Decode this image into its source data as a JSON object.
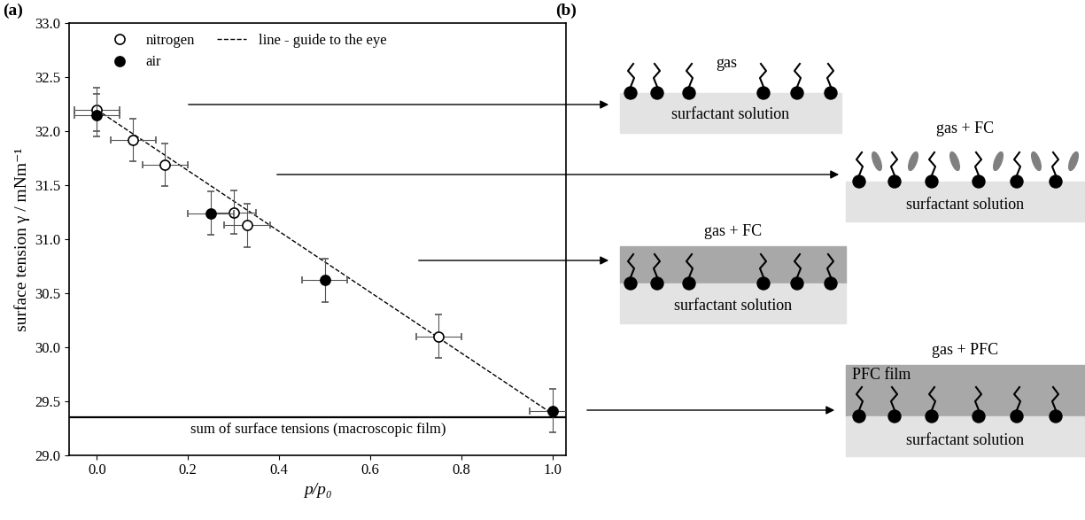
{
  "chart_data": {
    "type": "scatter",
    "panel_label": "(a)",
    "x_label": "p/p₀",
    "y_label": "surface tension γ / mNm⁻¹",
    "xlim": [
      -0.06,
      1.03
    ],
    "ylim": [
      29.0,
      33.0
    ],
    "xticks": [
      {
        "value": 0.0,
        "label": "0.0"
      },
      {
        "value": 0.2,
        "label": "0.2"
      },
      {
        "value": 0.4,
        "label": "0.4"
      },
      {
        "value": 0.6,
        "label": "0.6"
      },
      {
        "value": 0.8,
        "label": "0.8"
      },
      {
        "value": 1.0,
        "label": "1.0"
      }
    ],
    "yticks": [
      {
        "value": 29.0,
        "label": "29.0"
      },
      {
        "value": 29.5,
        "label": "29.5"
      },
      {
        "value": 30.0,
        "label": "30.0"
      },
      {
        "value": 30.5,
        "label": "30.5"
      },
      {
        "value": 31.0,
        "label": "31.0"
      },
      {
        "value": 31.5,
        "label": "31.5"
      },
      {
        "value": 32.0,
        "label": "32.0"
      },
      {
        "value": 32.5,
        "label": "32.5"
      },
      {
        "value": 33.0,
        "label": "33.0"
      }
    ],
    "legend": "upper left",
    "series": [
      {
        "name": "nitrogen",
        "type": "scatter",
        "color": "#000000",
        "marker": "open_circle",
        "x": [
          0.0,
          0.08,
          0.15,
          0.3,
          0.33,
          0.75
        ],
        "values": [
          32.2,
          31.92,
          31.69,
          31.25,
          31.13,
          30.1
        ],
        "x_errors": [
          0.05,
          0.05,
          0.05,
          0.05,
          0.05,
          0.05
        ],
        "y_errors": [
          0.2,
          0.2,
          0.2,
          0.2,
          0.2,
          0.2
        ]
      },
      {
        "name": "air",
        "type": "scatter",
        "color": "#000000",
        "marker": "filled_circle",
        "x": [
          0.0,
          0.25,
          0.5,
          1.0
        ],
        "values": [
          32.15,
          31.24,
          30.62,
          29.41
        ],
        "x_errors": [
          0.05,
          0.05,
          0.05,
          0.05
        ],
        "y_errors": [
          0.2,
          0.2,
          0.2,
          0.2
        ]
      },
      {
        "name": "line - guide to the eye",
        "type": "line",
        "color": "#000000",
        "line_style": "dashed",
        "x": [
          0.0,
          1.0
        ],
        "values": [
          32.2,
          29.38
        ]
      }
    ],
    "reference_line": {
      "value": 29.35,
      "label": "sum of surface tensions (macroscopic film)"
    }
  },
  "diagram": {
    "panel_label": "(b)",
    "states": [
      {
        "top": "gas",
        "bottom": "surfactant solution"
      },
      {
        "top": "gas + FC",
        "bottom": "surfactant solution"
      },
      {
        "top": "gas + FC",
        "bottom": "surfactant solution"
      },
      {
        "top": "gas + PFC",
        "film": "PFC film",
        "bottom": "surfactant solution"
      }
    ]
  }
}
